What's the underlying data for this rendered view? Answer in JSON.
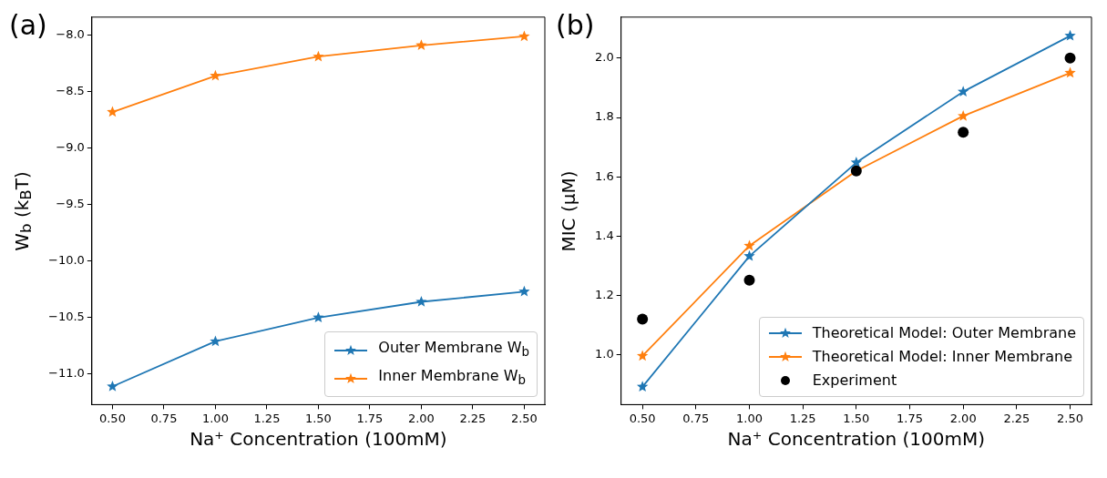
{
  "chart_data": [
    {
      "type": "line",
      "annotations": [
        "(a)"
      ],
      "xlabel": "Na⁺ Concentration (100mM)",
      "ylabel": "W$_{b}$ (k$_{B}$T)",
      "x": [
        0.5,
        1,
        1.5,
        2,
        2.5
      ],
      "series": [
        {
          "name": "Outer Membrane W$_{b}$",
          "color": "#1f77b4",
          "values": [
            -11.11,
            -10.71,
            -10.5,
            -10.36,
            -10.27
          ]
        },
        {
          "name": "Inner Membrane W$_{b}$",
          "color": "#ff7f0e",
          "values": [
            -8.68,
            -8.36,
            -8.19,
            -8.09,
            -8.01
          ]
        }
      ],
      "xlim": [
        0.4,
        2.6
      ],
      "xticks": [
        {
          "value": 0.5,
          "label": "0.50"
        },
        {
          "value": 0.75,
          "label": "0.75"
        },
        {
          "value": 1,
          "label": "1.00"
        },
        {
          "value": 1.25,
          "label": "1.25"
        },
        {
          "value": 1.5,
          "label": "1.50"
        },
        {
          "value": 1.75,
          "label": "1.75"
        },
        {
          "value": 2,
          "label": "2.00"
        },
        {
          "value": 2.25,
          "label": "2.25"
        },
        {
          "value": 2.5,
          "label": "2.50"
        }
      ],
      "ylim": [
        -11.27,
        -7.84
      ],
      "yticks": [
        {
          "value": -11,
          "label": "−11.0"
        },
        {
          "value": -10.5,
          "label": "−10.5"
        },
        {
          "value": -10,
          "label": "−10.0"
        },
        {
          "value": -9.5,
          "label": "−9.5"
        },
        {
          "value": -9,
          "label": "−9.0"
        },
        {
          "value": -8.5,
          "label": "−8.5"
        },
        {
          "value": -8,
          "label": "−8.0"
        }
      ],
      "grid": false,
      "legend": "bottom right",
      "marker": "star"
    },
    {
      "type": "line",
      "annotations": [
        "(b)"
      ],
      "xlabel": "Na⁺ Concentration (100mM)",
      "ylabel": "MIC (μM)",
      "x": [
        0.5,
        1,
        1.5,
        2,
        2.5
      ],
      "series": [
        {
          "name": "Theoretical Model: Outer Membrane",
          "color": "#1f77b4",
          "values": [
            0.893,
            1.333,
            1.648,
            1.887,
            2.075
          ]
        },
        {
          "name": "Theoretical Model: Inner Membrane",
          "color": "#ff7f0e",
          "values": [
            0.997,
            1.368,
            1.62,
            1.805,
            1.95
          ]
        },
        {
          "name": "Experiment",
          "type": "scatter",
          "marker": "circle",
          "color": "#000000",
          "values": [
            1.121,
            1.252,
            1.62,
            1.75,
            2.0
          ]
        }
      ],
      "xlim": [
        0.4,
        2.6
      ],
      "xticks": [
        {
          "value": 0.5,
          "label": "0.50"
        },
        {
          "value": 0.75,
          "label": "0.75"
        },
        {
          "value": 1,
          "label": "1.00"
        },
        {
          "value": 1.25,
          "label": "1.25"
        },
        {
          "value": 1.5,
          "label": "1.50"
        },
        {
          "value": 1.75,
          "label": "1.75"
        },
        {
          "value": 2,
          "label": "2.00"
        },
        {
          "value": 2.25,
          "label": "2.25"
        },
        {
          "value": 2.5,
          "label": "2.50"
        }
      ],
      "ylim": [
        0.833,
        2.138
      ],
      "yticks": [
        {
          "value": 1,
          "label": "1.0"
        },
        {
          "value": 1.2,
          "label": "1.2"
        },
        {
          "value": 1.4,
          "label": "1.4"
        },
        {
          "value": 1.6,
          "label": "1.6"
        },
        {
          "value": 1.8,
          "label": "1.8"
        },
        {
          "value": 2,
          "label": "2.0"
        }
      ],
      "grid": false,
      "legend": "bottom right",
      "marker": "star"
    }
  ]
}
